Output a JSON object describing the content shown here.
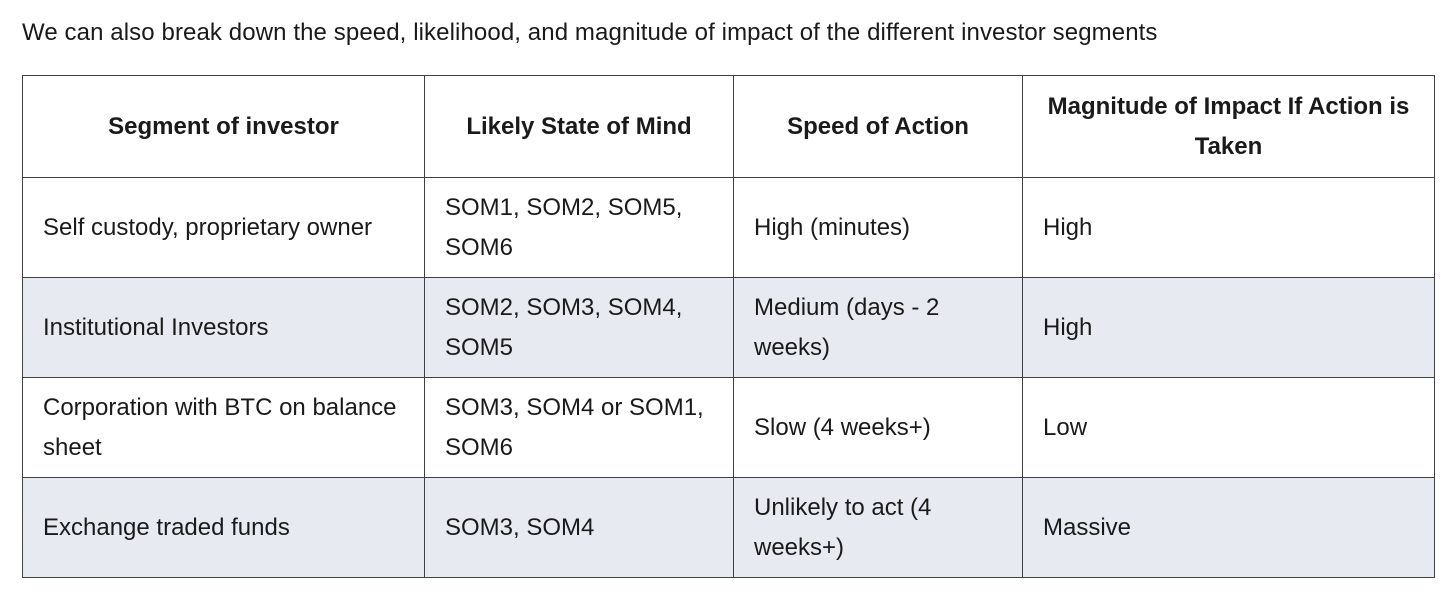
{
  "intro": "We can also break down the speed, likelihood, and magnitude of impact of the different investor segments",
  "table": {
    "headers": [
      "Segment of investor",
      "Likely State of Mind",
      "Speed of Action",
      "Magnitude of Impact If Action is Taken"
    ],
    "rows": [
      [
        "Self custody, proprietary owner",
        "SOM1, SOM2, SOM5, SOM6",
        "High (minutes)",
        "High"
      ],
      [
        "Institutional Investors",
        "SOM2, SOM3, SOM4, SOM5",
        "Medium (days - 2 weeks)",
        "High"
      ],
      [
        "Corporation with BTC on balance sheet",
        "SOM3, SOM4 or SOM1, SOM6",
        "Slow (4 weeks+)",
        "Low"
      ],
      [
        "Exchange traded funds",
        "SOM3, SOM4",
        "Unlikely to act (4 weeks+)",
        "Massive"
      ]
    ]
  },
  "colors": {
    "row_alternate_background": "#e7ebf1",
    "table_border": "#3f4245",
    "text": "#1a1a1a",
    "page_background": "#ffffff"
  }
}
